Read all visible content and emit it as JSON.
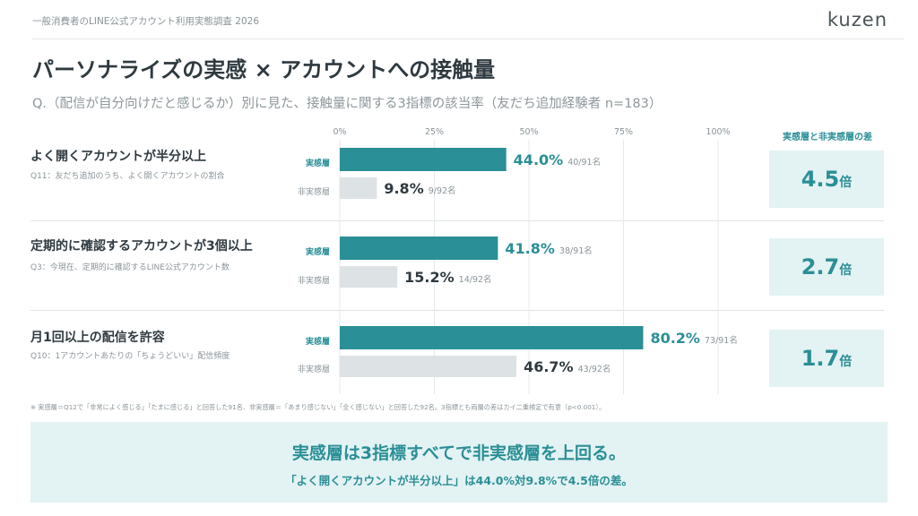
{
  "header": {
    "report_title": "一般消費者のLINE公式アカウント利用実態調査 2026",
    "logo_text": "kuzen"
  },
  "title": "パーソナライズの実感 × アカウントへの接触量",
  "subtitle": "Q.（配信が自分向けだと感じるか）別に見た、接触量に関する3指標の該当率（友だち追加経験者 n=183）",
  "group_labels": {
    "high": "実感層",
    "low": "非実感層"
  },
  "diff_header": "実感層と非実感層の差",
  "diff_unit": "倍",
  "metrics": [
    {
      "name": "よく開くアカウントが半分以上",
      "question": "Q11：友だち追加のうち、よく開くアカウントの割合",
      "ratio": "4.5"
    },
    {
      "name": "定期的に確認するアカウントが3個以上",
      "question": "Q3：今現在、定期的に確認するLINE公式アカウント数",
      "ratio": "2.7"
    },
    {
      "name": "月1回以上の配信を許容",
      "question": "Q10：1アカウントあたりの「ちょうどいい」配信頻度",
      "ratio": "1.7"
    }
  ],
  "chart_data": {
    "type": "bar",
    "orientation": "horizontal",
    "categories": [
      "よく開くアカウントが半分以上",
      "定期的に確認するアカウントが3個以上",
      "月1回以上の配信を許容"
    ],
    "series": [
      {
        "name": "実感層",
        "values": [
          44.0,
          41.8,
          80.2
        ],
        "value_labels": [
          "44.0%",
          "41.8%",
          "80.2%"
        ],
        "count_labels": [
          "40/91名",
          "38/91名",
          "73/91名"
        ],
        "color": "#2a8f96"
      },
      {
        "name": "非実感層",
        "values": [
          9.8,
          15.2,
          46.7
        ],
        "value_labels": [
          "9.8%",
          "15.2%",
          "46.7%"
        ],
        "count_labels": [
          "9/92名",
          "14/92名",
          "43/92名"
        ],
        "color": "#dde2e5"
      }
    ],
    "xlim": [
      0,
      100
    ],
    "xticks": [
      0,
      25,
      50,
      75,
      100
    ],
    "xtick_labels": [
      "0%",
      "25%",
      "50%",
      "75%",
      "100%"
    ],
    "grid": true
  },
  "footnote": "※ 実感層＝Q12で「非常によく感じる」「たまに感じる」と回答した91名、非実感層＝「あまり感じない」「全く感じない」と回答した92名。3指標とも両層の差はカイ二乗検定で有意（p<0.001）。",
  "conclusion": {
    "main": "実感層は3指標すべてで非実感層を上回る。",
    "sub": "「よく開くアカウントが半分以上」は44.0%対9.8%で4.5倍の差。"
  },
  "colors": {
    "accent": "#2a8f96",
    "muted_bar": "#dde2e5",
    "panel": "#e3f2f3"
  }
}
